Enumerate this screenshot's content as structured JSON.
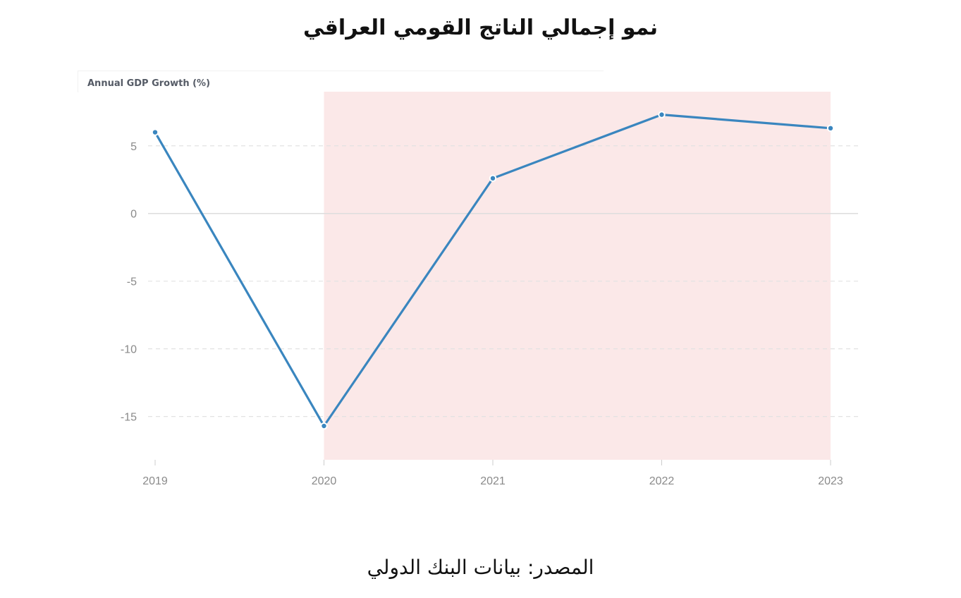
{
  "title": "نمو إجمالي الناتج القومي العراقي",
  "source": "المصدر: بيانات البنك الدولي",
  "chart_data": {
    "type": "line",
    "ylabel": "Annual GDP Growth (%)",
    "xlabel": "",
    "categories": [
      "2019",
      "2020",
      "2021",
      "2022",
      "2023"
    ],
    "series": [
      {
        "values": [
          6.0,
          -15.7,
          2.6,
          7.3,
          6.3
        ],
        "color": "#3a86bf"
      }
    ],
    "ylim": [
      -18.2,
      9.0
    ],
    "yticks": [
      5,
      0,
      -5,
      -10,
      -15
    ],
    "yticklabels": [
      "5",
      "0",
      "-5",
      "-10",
      "-15"
    ],
    "highlight_range": [
      "2020",
      "2023"
    ],
    "highlight_color": "#fbe8e8",
    "grid": true
  }
}
